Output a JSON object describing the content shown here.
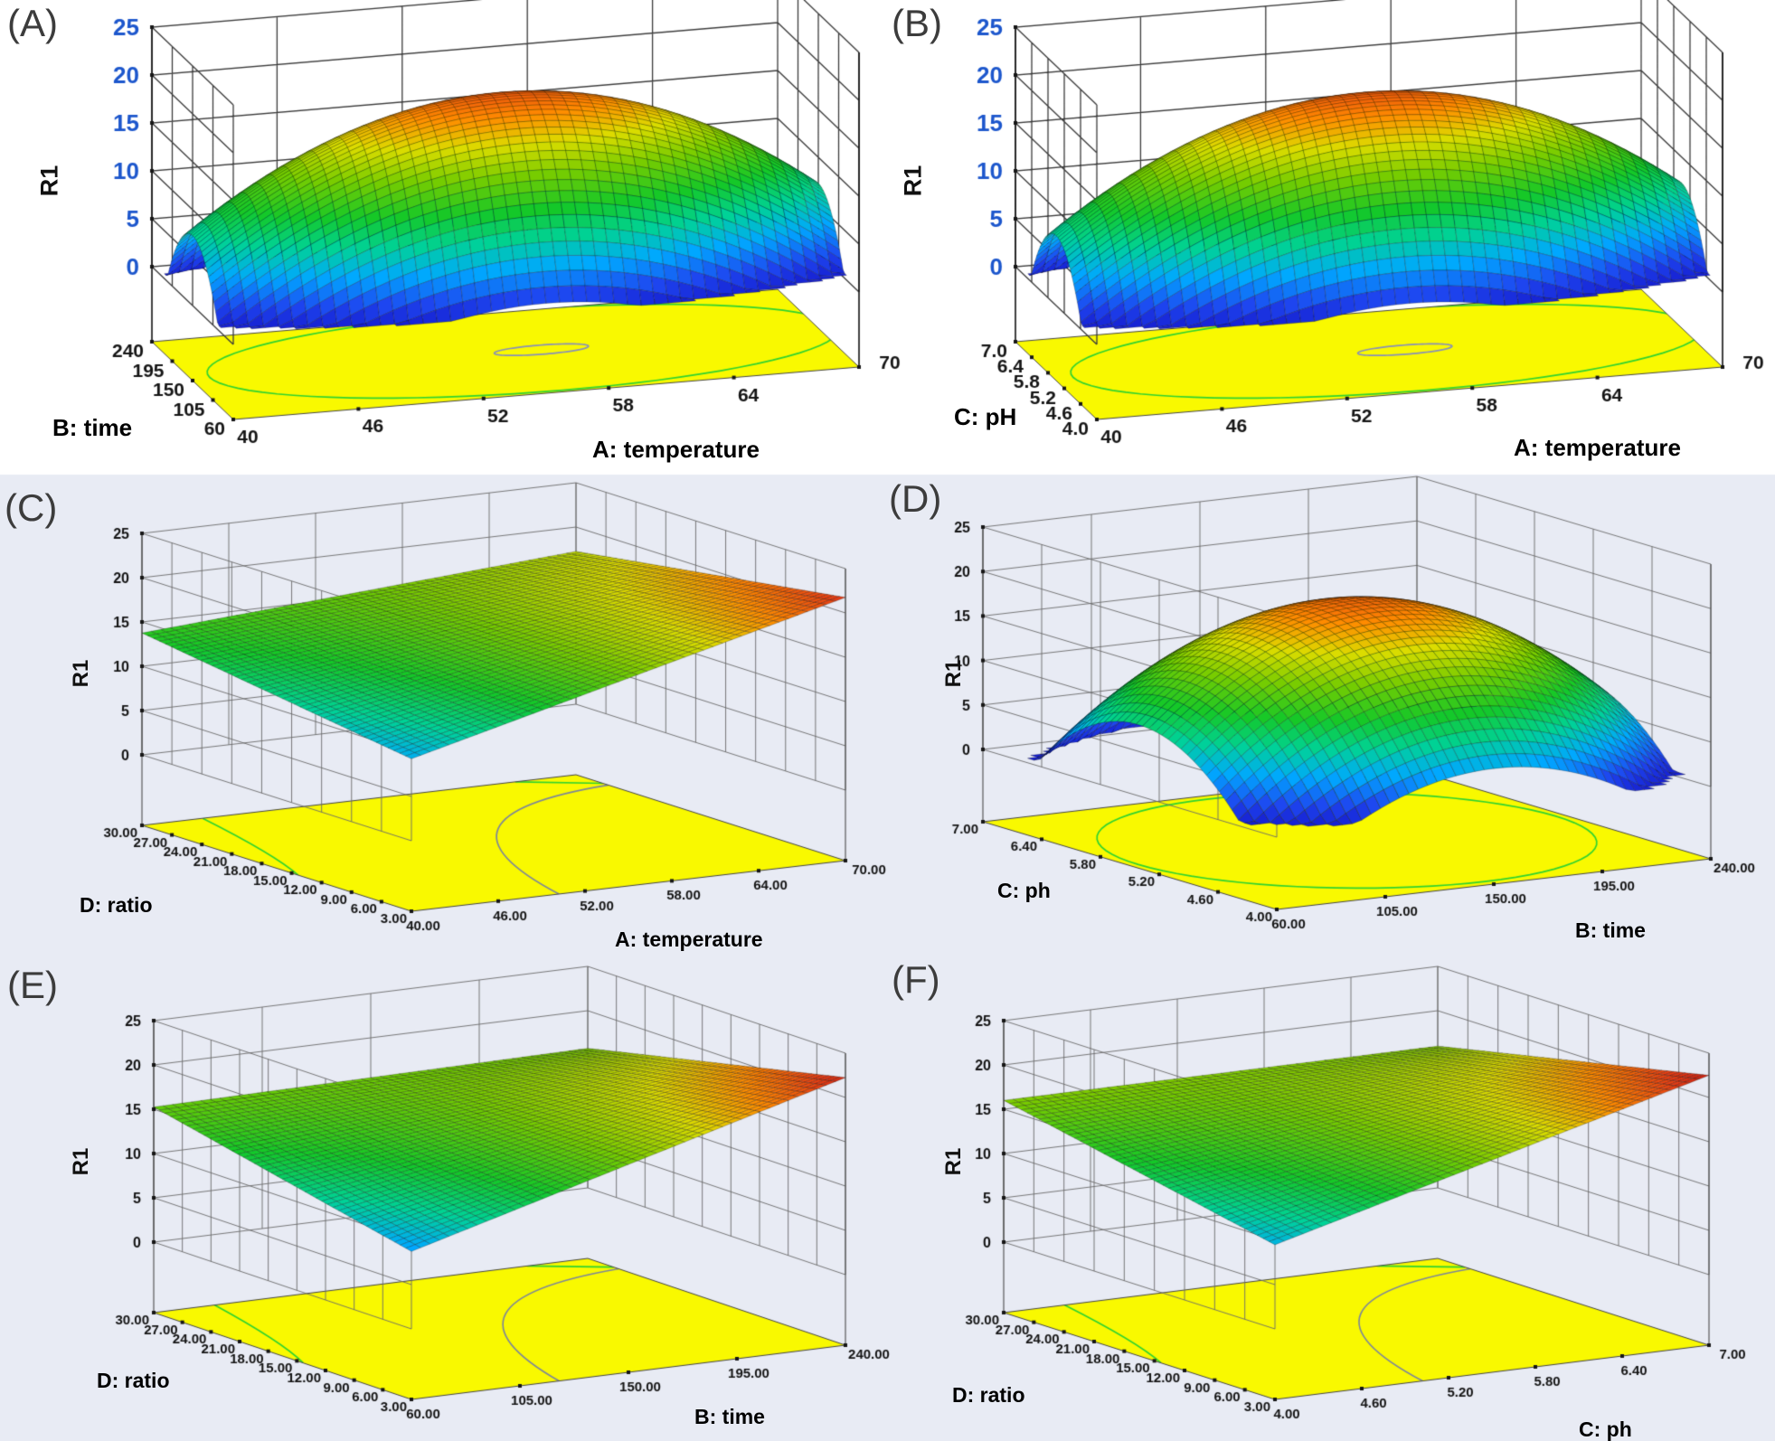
{
  "figure": {
    "bg_top": "#ffffff",
    "bg_bottom": "#e8ebf4",
    "grid_color_top_row": "#3a3a3a",
    "grid_color_other_rows": "#6a6a6a",
    "floor_color": "#f9f900",
    "green_contour_color": "#2fd32f",
    "gray_contour_color": "#7d8699",
    "z_tick_color_top_row": "#1c56cc",
    "tick_color": "#141414"
  },
  "chart_data": [
    {
      "panel": "(A)",
      "type": "surface3d",
      "x_axis": {
        "label": "A: temperature",
        "ticks": [
          "40",
          "46",
          "52",
          "58",
          "64",
          "70"
        ],
        "range": [
          40,
          70
        ]
      },
      "y_axis": {
        "label": "B: time",
        "ticks": [
          "60",
          "105",
          "150",
          "195",
          "240"
        ],
        "range": [
          60,
          240
        ]
      },
      "z_axis": {
        "label": "R1",
        "ticks": [
          "0",
          "5",
          "10",
          "15",
          "20",
          "25"
        ],
        "range": [
          0,
          25
        ]
      },
      "surface_model": {
        "kind": "dome",
        "peak": 19.3,
        "u0": 0.5,
        "v0": 0.5,
        "cu": 48,
        "cv": 71,
        "color_range": [
          0,
          22
        ]
      },
      "floor": {
        "color": "#f9f900",
        "contours": [
          {
            "type": "ellipse",
            "color": "#2fd32f",
            "c": [
              0.53,
              0.52
            ],
            "r": [
              0.5,
              0.5
            ]
          },
          {
            "type": "ellipse",
            "color": "#8890b8",
            "c": [
              0.56,
              0.52
            ],
            "r": [
              0.075,
              0.055
            ]
          }
        ]
      }
    },
    {
      "panel": "(B)",
      "type": "surface3d",
      "x_axis": {
        "label": "A: temperature",
        "ticks": [
          "40",
          "46",
          "52",
          "58",
          "64",
          "70"
        ],
        "range": [
          40,
          70
        ]
      },
      "y_axis": {
        "label": "C: pH",
        "ticks": [
          "4.0",
          "4.6",
          "5.2",
          "5.8",
          "6.4",
          "7.0"
        ],
        "range": [
          4,
          7
        ]
      },
      "z_axis": {
        "label": "R1",
        "ticks": [
          "0",
          "5",
          "10",
          "15",
          "20",
          "25"
        ],
        "range": [
          0,
          25
        ]
      },
      "surface_model": {
        "kind": "dome",
        "peak": 19.3,
        "u0": 0.5,
        "v0": 0.5,
        "cu": 48,
        "cv": 71,
        "color_range": [
          0,
          22
        ]
      },
      "floor": {
        "color": "#f9f900",
        "contours": [
          {
            "type": "ellipse",
            "color": "#2fd32f",
            "c": [
              0.53,
              0.52
            ],
            "r": [
              0.5,
              0.5
            ]
          },
          {
            "type": "ellipse",
            "color": "#8890b8",
            "c": [
              0.56,
              0.52
            ],
            "r": [
              0.075,
              0.055
            ]
          }
        ]
      }
    },
    {
      "panel": "(C)",
      "type": "surface3d",
      "x_axis": {
        "label": "A: temperature",
        "ticks": [
          "40.00",
          "46.00",
          "52.00",
          "58.00",
          "64.00",
          "70.00"
        ],
        "range": [
          40,
          70
        ]
      },
      "y_axis": {
        "label": "D: ratio",
        "ticks": [
          "3.00",
          "6.00",
          "9.00",
          "12.00",
          "15.00",
          "18.00",
          "21.00",
          "24.00",
          "27.00",
          "30.00"
        ],
        "range": [
          3,
          30
        ]
      },
      "z_axis": {
        "label": "R1",
        "ticks": [
          "0",
          "5",
          "10",
          "15",
          "20",
          "25"
        ],
        "range": [
          0,
          25
        ]
      },
      "surface_model": {
        "kind": "saddle",
        "base": 15.5,
        "slope": 8,
        "twist": -9,
        "color_range": [
          5,
          23
        ]
      },
      "floor": {
        "color": "#f9f900",
        "contours": [
          {
            "type": "curve",
            "color": "#2fd32f",
            "p0": [
              0.14,
              1
            ],
            "cp": [
              0.07,
              0.62
            ],
            "p1": [
              0,
              0.42
            ]
          },
          {
            "type": "curve",
            "color": "#7d8699",
            "p0": [
              0.34,
              0
            ],
            "cp": [
              0.5,
              0.8
            ],
            "p1": [
              1,
              0.88
            ]
          },
          {
            "type": "line",
            "color": "#2fd32f",
            "p0": [
              0.86,
              1
            ],
            "p1": [
              1,
              0.9
            ]
          }
        ]
      }
    },
    {
      "panel": "(D)",
      "type": "surface3d",
      "x_axis": {
        "label": "B: time",
        "ticks": [
          "60.00",
          "105.00",
          "150.00",
          "195.00",
          "240.00"
        ],
        "range": [
          60,
          240
        ]
      },
      "y_axis": {
        "label": "C: ph",
        "ticks": [
          "4.00",
          "4.60",
          "5.20",
          "5.80",
          "6.40",
          "7.00"
        ],
        "range": [
          4,
          7
        ]
      },
      "z_axis": {
        "label": "R1",
        "ticks": [
          "0",
          "5",
          "10",
          "15",
          "20",
          "25"
        ],
        "range": [
          0,
          25
        ]
      },
      "surface_model": {
        "kind": "dome",
        "peak": 19.0,
        "u0": 0.5,
        "v0": 0.47,
        "cu": 44,
        "cv": 64,
        "color_range": [
          0,
          22
        ]
      },
      "floor": {
        "color": "#f9f900",
        "contours": [
          {
            "type": "ellipse",
            "color": "#2fd32f",
            "c": [
              0.5,
              0.5
            ],
            "r": [
              0.48,
              0.47
            ]
          }
        ]
      }
    },
    {
      "panel": "(E)",
      "type": "surface3d",
      "x_axis": {
        "label": "B: time",
        "ticks": [
          "60.00",
          "105.00",
          "150.00",
          "195.00",
          "240.00"
        ],
        "range": [
          60,
          240
        ]
      },
      "y_axis": {
        "label": "D: ratio",
        "ticks": [
          "3.00",
          "6.00",
          "9.00",
          "12.00",
          "15.00",
          "18.00",
          "21.00",
          "24.00",
          "27.00",
          "30.00"
        ],
        "range": [
          3,
          30
        ]
      },
      "z_axis": {
        "label": "R1",
        "ticks": [
          "0",
          "5",
          "10",
          "15",
          "20",
          "25"
        ],
        "range": [
          0,
          25
        ]
      },
      "surface_model": {
        "kind": "saddle",
        "base": 15.5,
        "slope": 7,
        "twist": -13,
        "color_range": [
          5,
          23
        ]
      },
      "floor": {
        "color": "#f9f900",
        "contours": [
          {
            "type": "curve",
            "color": "#2fd32f",
            "p0": [
              0.14,
              1
            ],
            "cp": [
              0.07,
              0.62
            ],
            "p1": [
              0,
              0.42
            ]
          },
          {
            "type": "curve",
            "color": "#7d8699",
            "p0": [
              0.34,
              0
            ],
            "cp": [
              0.5,
              0.8
            ],
            "p1": [
              1,
              0.88
            ]
          },
          {
            "type": "line",
            "color": "#2fd32f",
            "p0": [
              0.86,
              1
            ],
            "p1": [
              1,
              0.9
            ]
          }
        ]
      }
    },
    {
      "panel": "(F)",
      "type": "surface3d",
      "x_axis": {
        "label": "C: ph",
        "ticks": [
          "4.00",
          "4.60",
          "5.20",
          "5.80",
          "6.40",
          "7.00"
        ],
        "range": [
          4,
          7
        ]
      },
      "y_axis": {
        "label": "D: ratio",
        "ticks": [
          "3.00",
          "6.00",
          "9.00",
          "12.00",
          "15.00",
          "18.00",
          "21.00",
          "24.00",
          "27.00",
          "30.00"
        ],
        "range": [
          3,
          30
        ]
      },
      "z_axis": {
        "label": "R1",
        "ticks": [
          "0",
          "5",
          "10",
          "15",
          "20",
          "25"
        ],
        "range": [
          0,
          25
        ]
      },
      "surface_model": {
        "kind": "saddle",
        "base": 16.0,
        "slope": 6.5,
        "twist": -13,
        "color_range": [
          5,
          23
        ]
      },
      "floor": {
        "color": "#f9f900",
        "contours": [
          {
            "type": "curve",
            "color": "#2fd32f",
            "p0": [
              0.14,
              1
            ],
            "cp": [
              0.07,
              0.62
            ],
            "p1": [
              0,
              0.42
            ]
          },
          {
            "type": "curve",
            "color": "#7d8699",
            "p0": [
              0.34,
              0
            ],
            "cp": [
              0.5,
              0.8
            ],
            "p1": [
              1,
              0.88
            ]
          },
          {
            "type": "line",
            "color": "#2fd32f",
            "p0": [
              0.86,
              1
            ],
            "p1": [
              1,
              0.9
            ]
          }
        ]
      }
    }
  ]
}
